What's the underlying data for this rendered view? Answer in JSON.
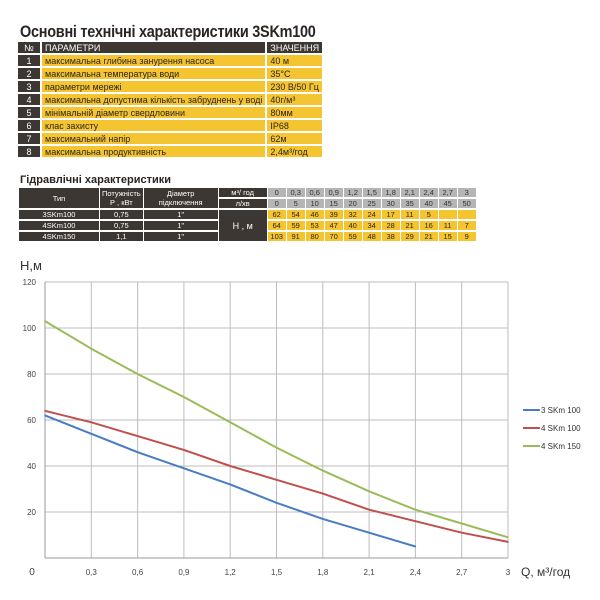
{
  "spec": {
    "title": "Основні технічні характеристики 3SKm100",
    "header": {
      "num": "№",
      "param": "ПАРАМЕТРИ",
      "value": "ЗНАЧЕННЯ"
    },
    "rows": [
      {
        "num": "1",
        "param": "максимальна глибина занурення насоса",
        "value": "40 м"
      },
      {
        "num": "2",
        "param": "максимальна температура води",
        "value": "35°С"
      },
      {
        "num": "3",
        "param": "параметри мережі",
        "value": "230 В/50 Гц"
      },
      {
        "num": "4",
        "param": "максимальна допустима кількість забруднень у воді",
        "value": "40г/м³"
      },
      {
        "num": "5",
        "param": "мінімальній діаметр свердловини",
        "value": "80мм"
      },
      {
        "num": "6",
        "param": "клас захисту",
        "value": "IP68"
      },
      {
        "num": "7",
        "param": "максимальний напір",
        "value": "62м"
      },
      {
        "num": "8",
        "param": "максимальна продуктивність",
        "value": "2,4м³/год"
      }
    ]
  },
  "hydraulic": {
    "title": "Гідравлічні характеристики",
    "col_type": "Тип",
    "col_power": "Потужність Р , кВт",
    "col_diam": "Діаметр підключення",
    "unit_m3": "м³/ год",
    "unit_lmin": "л/хв",
    "head_label": "Н , м",
    "q_m3": [
      "0",
      "0,3",
      "0,6",
      "0,9",
      "1,2",
      "1,5",
      "1,8",
      "2,1",
      "2,4",
      "2,7",
      "3"
    ],
    "q_lmin": [
      "0",
      "5",
      "10",
      "15",
      "20",
      "25",
      "30",
      "35",
      "40",
      "45",
      "50"
    ],
    "models": [
      {
        "type": "3SKm100",
        "power": "0,75",
        "diam": "1\"",
        "h": [
          "62",
          "54",
          "46",
          "39",
          "32",
          "24",
          "17",
          "11",
          "5",
          "",
          ""
        ]
      },
      {
        "type": "4SKm100",
        "power": "0,75",
        "diam": "1\"",
        "h": [
          "64",
          "59",
          "53",
          "47",
          "40",
          "34",
          "28",
          "21",
          "16",
          "11",
          "7"
        ]
      },
      {
        "type": "4SKm150",
        "power": "1,1",
        "diam": "1\"",
        "h": [
          "103",
          "91",
          "80",
          "70",
          "59",
          "48",
          "38",
          "29",
          "21",
          "15",
          "9"
        ]
      }
    ]
  },
  "chart_data": {
    "type": "line",
    "ylabel": "Н,м",
    "xlabel": "Q, м³/год",
    "xlim": [
      0,
      3
    ],
    "ylim": [
      0,
      120
    ],
    "x_ticks": [
      "0",
      "0,3",
      "0,6",
      "0,9",
      "1,2",
      "1,5",
      "1,8",
      "2,1",
      "2,4",
      "2,7",
      "3"
    ],
    "y_ticks": [
      "20",
      "40",
      "60",
      "80",
      "100",
      "120"
    ],
    "grid": true,
    "legend": "right",
    "series": [
      {
        "name": "3 SKm 100",
        "color": "#4a7cc4",
        "x": [
          0,
          0.3,
          0.6,
          0.9,
          1.2,
          1.5,
          1.8,
          2.1,
          2.4
        ],
        "y": [
          62,
          54,
          46,
          39,
          32,
          24,
          17,
          11,
          5
        ]
      },
      {
        "name": "4 SKm 100",
        "color": "#c0504d",
        "x": [
          0,
          0.3,
          0.6,
          0.9,
          1.2,
          1.5,
          1.8,
          2.1,
          2.4,
          2.7,
          3
        ],
        "y": [
          64,
          59,
          53,
          47,
          40,
          34,
          28,
          21,
          16,
          11,
          7
        ]
      },
      {
        "name": "4 SKm 150",
        "color": "#9bbb59",
        "x": [
          0,
          0.3,
          0.6,
          0.9,
          1.2,
          1.5,
          1.8,
          2.1,
          2.4,
          2.7,
          3
        ],
        "y": [
          103,
          91,
          80,
          70,
          59,
          48,
          38,
          29,
          21,
          15,
          9
        ]
      }
    ]
  }
}
